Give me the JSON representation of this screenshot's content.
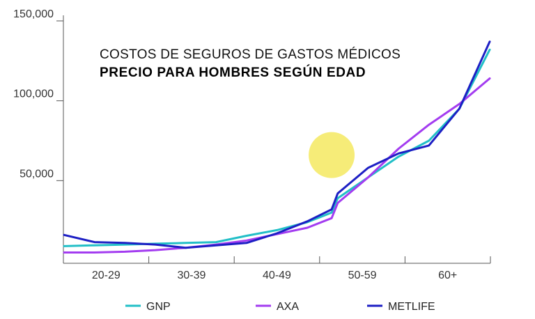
{
  "chart_data": {
    "type": "line",
    "title": "COSTOS DE SEGUROS DE GASTOS MÉDICOS",
    "subtitle": "PRECIO PARA HOMBRES SEGÚN EDAD",
    "xlabel": "",
    "ylabel": "",
    "categories": [
      "20-29",
      "30-39",
      "40-49",
      "50-59",
      "60+"
    ],
    "x": [
      20,
      25,
      30,
      35,
      40,
      45,
      50,
      55,
      60,
      64,
      65,
      70,
      75,
      80,
      85,
      90
    ],
    "ylim": [
      0,
      150000
    ],
    "yticks": [
      50000,
      100000,
      150000
    ],
    "ytick_labels": [
      "50,000",
      "100,000",
      "150,000"
    ],
    "grid": false,
    "legend_position": "bottom",
    "highlight": {
      "x": 64,
      "y": 66000,
      "color": "#f5e960"
    },
    "series": [
      {
        "name": "GNP",
        "color": "#22bfc7",
        "values": [
          9000,
          9500,
          10000,
          10500,
          11000,
          11500,
          15500,
          19000,
          24000,
          30000,
          39000,
          52000,
          65000,
          75000,
          95000,
          132000
        ]
      },
      {
        "name": "AXA",
        "color": "#a33cf0",
        "values": [
          5000,
          5000,
          5500,
          6500,
          8000,
          10000,
          12500,
          16500,
          20500,
          26500,
          36000,
          52000,
          70000,
          85000,
          98000,
          114000
        ]
      },
      {
        "name": "METLIFE",
        "color": "#1d1fc4",
        "values": [
          16000,
          11500,
          11000,
          10000,
          8000,
          9500,
          11000,
          17000,
          24500,
          32000,
          42000,
          58000,
          67000,
          72000,
          95000,
          137000
        ]
      }
    ]
  }
}
